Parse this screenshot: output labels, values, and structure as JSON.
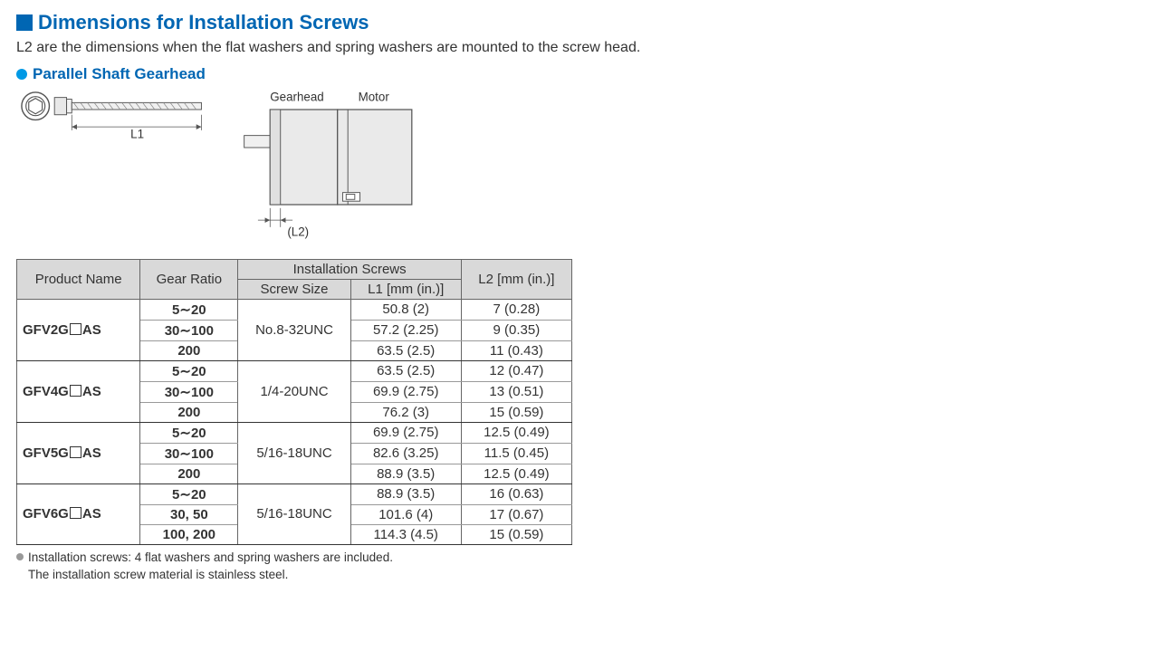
{
  "title": "Dimensions for Installation Screws",
  "subtext": "L2 are the dimensions when the flat washers and spring washers are mounted to the screw head.",
  "subheading": "Parallel Shaft Gearhead",
  "diagram": {
    "l1_label": "L1",
    "l2_label": "(L2)",
    "gearhead_label": "Gearhead",
    "motor_label": "Motor"
  },
  "table": {
    "headers": {
      "product_name": "Product Name",
      "gear_ratio": "Gear Ratio",
      "install_screws": "Installation Screws",
      "screw_size": "Screw Size",
      "l1": "L1 [mm (in.)]",
      "l2": "L2 [mm (in.)]"
    },
    "groups": [
      {
        "product_prefix": "GFV2G",
        "product_suffix": "AS",
        "screw_size": "No.8-32UNC",
        "rows": [
          {
            "ratio": "5∼20",
            "l1": "50.8 (2)",
            "l2": "7 (0.28)"
          },
          {
            "ratio": "30∼100",
            "l1": "57.2 (2.25)",
            "l2": "9 (0.35)"
          },
          {
            "ratio": "200",
            "l1": "63.5 (2.5)",
            "l2": "11 (0.43)"
          }
        ]
      },
      {
        "product_prefix": "GFV4G",
        "product_suffix": "AS",
        "screw_size": "1/4-20UNC",
        "rows": [
          {
            "ratio": "5∼20",
            "l1": "63.5 (2.5)",
            "l2": "12 (0.47)"
          },
          {
            "ratio": "30∼100",
            "l1": "69.9 (2.75)",
            "l2": "13 (0.51)"
          },
          {
            "ratio": "200",
            "l1": "76.2 (3)",
            "l2": "15 (0.59)"
          }
        ]
      },
      {
        "product_prefix": "GFV5G",
        "product_suffix": "AS",
        "screw_size": "5/16-18UNC",
        "rows": [
          {
            "ratio": "5∼20",
            "l1": "69.9 (2.75)",
            "l2": "12.5 (0.49)"
          },
          {
            "ratio": "30∼100",
            "l1": "82.6 (3.25)",
            "l2": "11.5 (0.45)"
          },
          {
            "ratio": "200",
            "l1": "88.9 (3.5)",
            "l2": "12.5 (0.49)"
          }
        ]
      },
      {
        "product_prefix": "GFV6G",
        "product_suffix": "AS",
        "screw_size": "5/16-18UNC",
        "rows": [
          {
            "ratio": "5∼20",
            "l1": "88.9 (3.5)",
            "l2": "16 (0.63)"
          },
          {
            "ratio": "30, 50",
            "l1": "101.6 (4)",
            "l2": "17 (0.67)"
          },
          {
            "ratio": "100, 200",
            "l1": "114.3 (4.5)",
            "l2": "15 (0.59)"
          }
        ]
      }
    ]
  },
  "footnotes": {
    "line1": "Installation screws: 4 flat washers and spring washers are included.",
    "line2": "The installation screw material is stainless steel."
  },
  "colors": {
    "accent": "#0066b3",
    "dot": "#0099e5",
    "header_bg": "#d9d9d9",
    "border": "#666666",
    "text": "#333333"
  }
}
